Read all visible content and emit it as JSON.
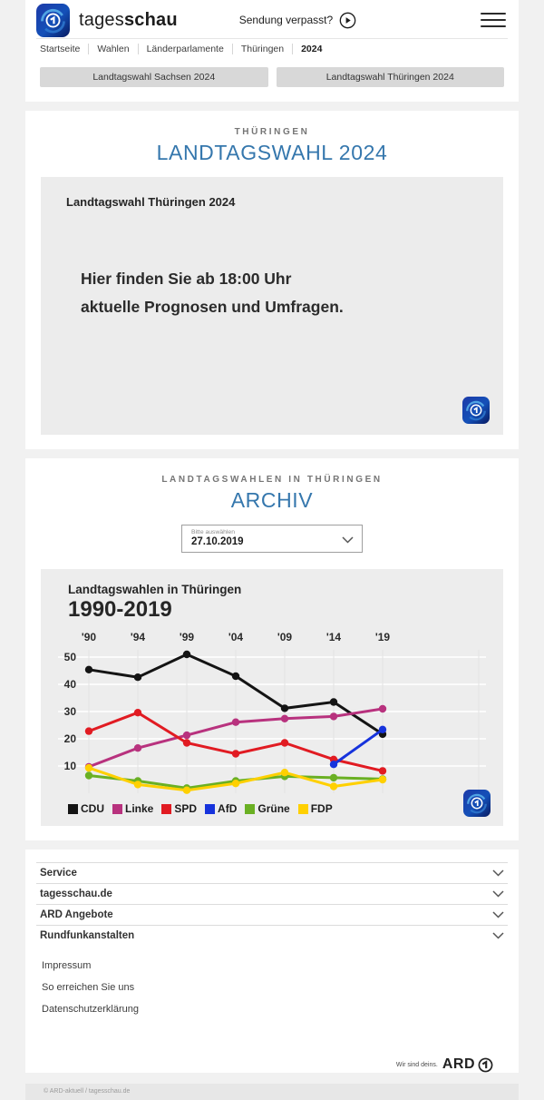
{
  "header": {
    "brand_regular": "tages",
    "brand_bold": "schau",
    "sendung_verpasst": "Sendung verpasst?"
  },
  "nav": {
    "breadcrumb": [
      "Startseite",
      "Wahlen",
      "Länderparlamente",
      "Thüringen",
      "2024"
    ]
  },
  "quick_links": [
    "Landtagswahl Sachsen 2024",
    "Landtagswahl Thüringen 2024"
  ],
  "election_section": {
    "kicker": "THÜRINGEN",
    "title": "LANDTAGSWAHL 2024",
    "card": {
      "title": "Landtagswahl Thüringen 2024",
      "message_line1": "Hier finden Sie ab 18:00 Uhr",
      "message_line2": "aktuelle Prognosen und Umfragen."
    }
  },
  "archive_section": {
    "kicker": "LANDTAGSWAHLEN IN THÜRINGEN",
    "title": "ARCHIV",
    "select": {
      "label": "Bitte auswählen",
      "value": "27.10.2019"
    }
  },
  "chart_data": {
    "type": "line",
    "title": "Landtagswahlen in Thüringen",
    "subtitle": "1990-2019",
    "x_tick_labels": [
      "'90",
      "'94",
      "'99",
      "'04",
      "'09",
      "'14",
      "'19"
    ],
    "x_years": [
      1990,
      1994,
      1999,
      2004,
      2009,
      2014,
      2019
    ],
    "y_ticks": [
      10,
      20,
      30,
      40,
      50
    ],
    "ylim": [
      0,
      55
    ],
    "grid": true,
    "legend_position": "bottom",
    "ylabel": "",
    "xlabel": "",
    "series": [
      {
        "name": "CDU",
        "color": "#141414",
        "values": [
          45.4,
          42.6,
          51.0,
          43.0,
          31.2,
          33.5,
          21.7
        ]
      },
      {
        "name": "Linke",
        "color": "#b8327e",
        "values": [
          9.7,
          16.6,
          21.3,
          26.1,
          27.4,
          28.2,
          31.0
        ]
      },
      {
        "name": "SPD",
        "color": "#e11b22",
        "values": [
          22.8,
          29.6,
          18.5,
          14.5,
          18.5,
          12.4,
          8.2
        ]
      },
      {
        "name": "AfD",
        "color": "#1633dc",
        "values": [
          null,
          null,
          null,
          null,
          null,
          10.6,
          23.4
        ]
      },
      {
        "name": "Grüne",
        "color": "#6ab023",
        "values": [
          6.5,
          4.5,
          1.9,
          4.5,
          6.2,
          5.7,
          5.2
        ]
      },
      {
        "name": "FDP",
        "color": "#ffd000",
        "values": [
          9.3,
          3.2,
          1.1,
          3.6,
          7.6,
          2.5,
          5.0
        ]
      }
    ]
  },
  "footer": {
    "accordion": [
      "Service",
      "tagesschau.de",
      "ARD Angebote",
      "Rundfunkanstalten"
    ],
    "links": [
      "Impressum",
      "So erreichen Sie uns",
      "Datenschutzerklärung"
    ],
    "ard_slogan": "Wir sind deins.",
    "ard_brand": "ARD",
    "copyright": "© ARD-aktuell / tagesschau.de"
  },
  "colors": {
    "accent_blue": "#3577ad",
    "card_gray": "#ececec",
    "page_bg": "#f1f1f1"
  }
}
